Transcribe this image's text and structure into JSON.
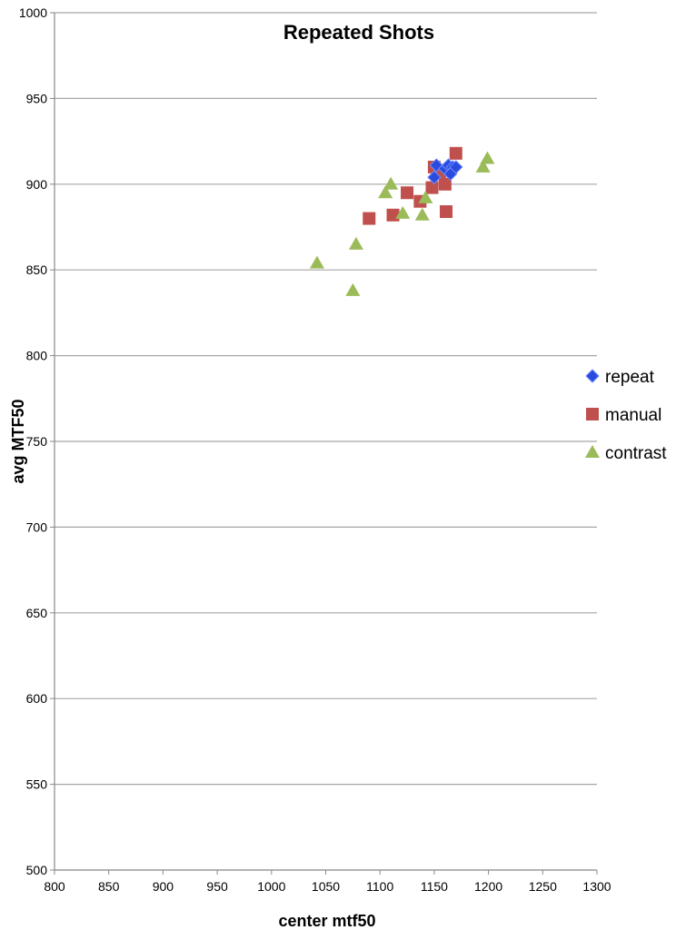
{
  "chart_data": {
    "type": "scatter",
    "title": "Repeated Shots",
    "xlabel": "center mtf50",
    "ylabel": "avg MTF50",
    "xlim": [
      800,
      1300
    ],
    "ylim": [
      500,
      1000
    ],
    "xticks": [
      800,
      850,
      900,
      950,
      1000,
      1050,
      1100,
      1150,
      1200,
      1250,
      1300
    ],
    "yticks": [
      500,
      550,
      600,
      650,
      700,
      750,
      800,
      850,
      900,
      950,
      1000
    ],
    "grid": "horizontal",
    "legend_position": "right",
    "series": [
      {
        "name": "repeat",
        "marker": "diamond",
        "color": "#2b4bdf",
        "points": [
          [
            1150,
            904
          ],
          [
            1152,
            911
          ],
          [
            1160,
            909
          ],
          [
            1163,
            911
          ],
          [
            1167,
            910
          ],
          [
            1165,
            906
          ],
          [
            1170,
            910
          ]
        ]
      },
      {
        "name": "manual",
        "marker": "square",
        "color": "#c0504d",
        "points": [
          [
            1170,
            918
          ],
          [
            1125,
            895
          ],
          [
            1090,
            880
          ],
          [
            1112,
            882
          ],
          [
            1137,
            890
          ],
          [
            1148,
            898
          ],
          [
            1161,
            884
          ],
          [
            1160,
            900
          ],
          [
            1150,
            910
          ],
          [
            1155,
            906
          ]
        ]
      },
      {
        "name": "contrast",
        "marker": "triangle",
        "color": "#9bbb59",
        "points": [
          [
            1199,
            915
          ],
          [
            1195,
            910
          ],
          [
            1110,
            900
          ],
          [
            1105,
            895
          ],
          [
            1142,
            892
          ],
          [
            1121,
            883
          ],
          [
            1139,
            882
          ],
          [
            1078,
            865
          ],
          [
            1042,
            854
          ],
          [
            1075,
            838
          ]
        ]
      }
    ]
  }
}
